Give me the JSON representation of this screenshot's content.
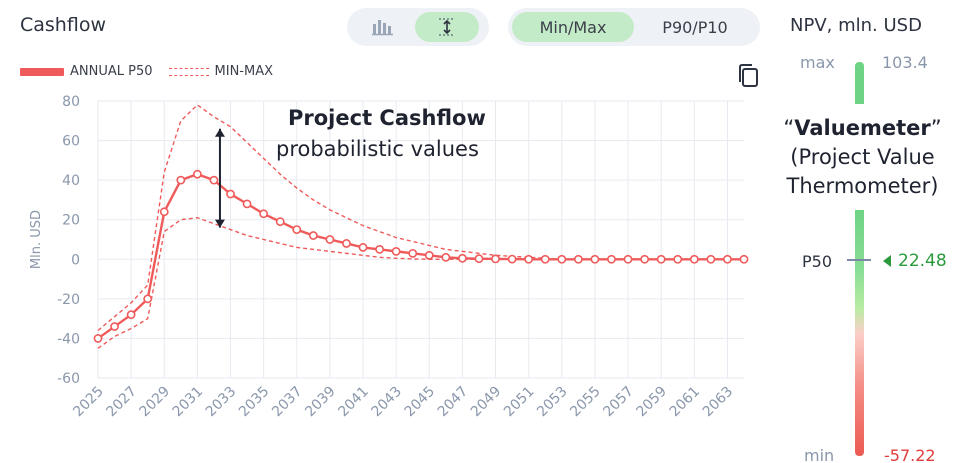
{
  "header": {
    "title": "Cashflow",
    "mode_options": [
      "Min/Max",
      "P90/P10"
    ],
    "active_mode": "Min/Max",
    "npv_title": "NPV, mln. USD"
  },
  "toolbar_icons": [
    "bar-chart-icon",
    "range-height-icon",
    "copy-icon"
  ],
  "legend": [
    "ANNUAL P50",
    "MIN-MAX"
  ],
  "annotation": {
    "title": "Project Cashflow",
    "subtitle": "probabilistic values"
  },
  "valuemeter": {
    "caption_quote_open": "“",
    "caption_name": "Valuemeter",
    "caption_quote_close": "”",
    "caption_line2": "(Project Value",
    "caption_line3": "Thermometer)",
    "max_label": "max",
    "max_value": "103.4",
    "min_label": "min",
    "min_value": "-57.22",
    "p50_label": "P50",
    "p50_value": "22.48",
    "colors": {
      "high": "#6fd384",
      "low": "#ec5a52",
      "p50_value": "#2a9a3c",
      "min_value": "#e23b3b"
    }
  },
  "chart_data": {
    "type": "line",
    "ylabel": "Mln. USD",
    "ylim": [
      -60,
      80
    ],
    "yticks": [
      80,
      60,
      40,
      20,
      0,
      -20,
      -40,
      -60
    ],
    "x": [
      2025,
      2026,
      2027,
      2028,
      2029,
      2030,
      2031,
      2032,
      2033,
      2034,
      2035,
      2036,
      2037,
      2038,
      2039,
      2040,
      2041,
      2042,
      2043,
      2044,
      2045,
      2046,
      2047,
      2048,
      2049,
      2050,
      2051,
      2052,
      2053,
      2054,
      2055,
      2056,
      2057,
      2058,
      2059,
      2060,
      2061,
      2062,
      2063,
      2064
    ],
    "xticks": [
      2025,
      2027,
      2029,
      2031,
      2033,
      2035,
      2037,
      2039,
      2041,
      2043,
      2045,
      2047,
      2049,
      2051,
      2053,
      2055,
      2057,
      2059,
      2061,
      2063
    ],
    "grid": true,
    "colors": {
      "series": "#ef5b5b",
      "grid": "#e7eaf0",
      "axis": "#8a97ab"
    },
    "series": [
      {
        "name": "ANNUAL P50",
        "style": "solid-markers",
        "values": [
          -40,
          -34,
          -28,
          -20,
          24,
          40,
          43,
          40,
          33,
          28,
          23,
          19,
          15,
          12,
          10,
          8,
          6,
          5,
          4,
          3,
          2,
          1,
          0.5,
          0.3,
          0.2,
          0.1,
          0,
          0,
          0,
          0,
          0,
          0,
          0,
          0,
          0,
          0,
          0,
          0,
          0,
          0
        ]
      },
      {
        "name": "MIN-MAX",
        "style": "dashed",
        "bound": "max",
        "values": [
          -36,
          -29,
          -22,
          -13,
          44,
          70,
          78,
          72,
          67,
          59,
          51,
          43,
          36,
          30,
          25,
          21,
          17,
          14,
          11,
          9,
          7,
          5,
          4,
          3,
          2,
          1.5,
          1,
          0.5,
          0,
          0,
          0,
          0,
          0,
          0,
          0,
          0,
          0,
          0,
          0,
          0
        ]
      },
      {
        "name": "MIN-MAX",
        "style": "dashed",
        "bound": "min",
        "values": [
          -45,
          -39,
          -35,
          -30,
          14,
          20,
          21,
          18,
          15,
          12,
          10,
          8,
          6,
          5,
          4,
          3,
          2,
          1,
          0.5,
          0.2,
          0,
          0,
          0,
          0,
          0,
          0,
          0,
          0,
          0,
          0,
          0,
          0,
          0,
          0,
          0,
          0,
          0,
          0,
          0,
          0
        ]
      }
    ]
  }
}
